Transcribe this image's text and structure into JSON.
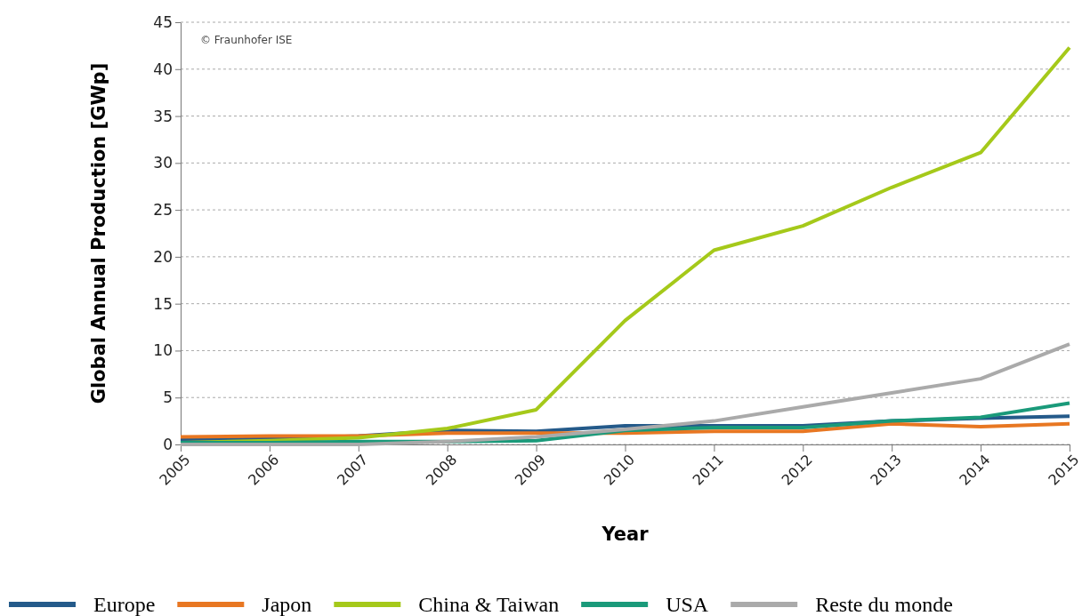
{
  "chart_data": {
    "type": "line",
    "xlabel": "Year",
    "ylabel": "Global Annual Production [GWp]",
    "categories": [
      "2005",
      "2006",
      "2007",
      "2008",
      "2009",
      "2010",
      "2011",
      "2012",
      "2013",
      "2014",
      "2015"
    ],
    "series": [
      {
        "name": "Europe",
        "color": "#245a8a",
        "values": [
          0.5,
          0.6,
          0.9,
          1.5,
          1.4,
          2.0,
          2.0,
          2.0,
          2.5,
          2.8,
          3.0
        ]
      },
      {
        "name": "Japon",
        "color": "#e87722",
        "values": [
          0.8,
          0.9,
          0.9,
          1.2,
          1.2,
          1.2,
          1.4,
          1.4,
          2.2,
          1.9,
          2.2
        ]
      },
      {
        "name": "China & Taiwan",
        "color": "#a5c91a",
        "values": [
          0.2,
          0.4,
          0.7,
          1.7,
          3.7,
          13.2,
          20.7,
          23.3,
          27.4,
          31.1,
          42.3
        ]
      },
      {
        "name": "USA",
        "color": "#1a9a7a",
        "values": [
          0.2,
          0.2,
          0.3,
          0.3,
          0.4,
          1.5,
          1.8,
          1.8,
          2.5,
          2.9,
          4.4
        ]
      },
      {
        "name": "Reste du monde",
        "color": "#aaaaaa",
        "values": [
          0.0,
          0.0,
          0.0,
          0.3,
          0.8,
          1.6,
          2.5,
          4.0,
          5.5,
          7.0,
          10.7
        ]
      }
    ],
    "ylim": [
      0,
      45
    ],
    "yticks": [
      0,
      5,
      10,
      15,
      20,
      25,
      30,
      35,
      40,
      45
    ],
    "grid": "y",
    "legend": "bottom",
    "marker": "none",
    "line_style": "solid",
    "annotations": [
      "© Fraunhofer ISE"
    ]
  }
}
